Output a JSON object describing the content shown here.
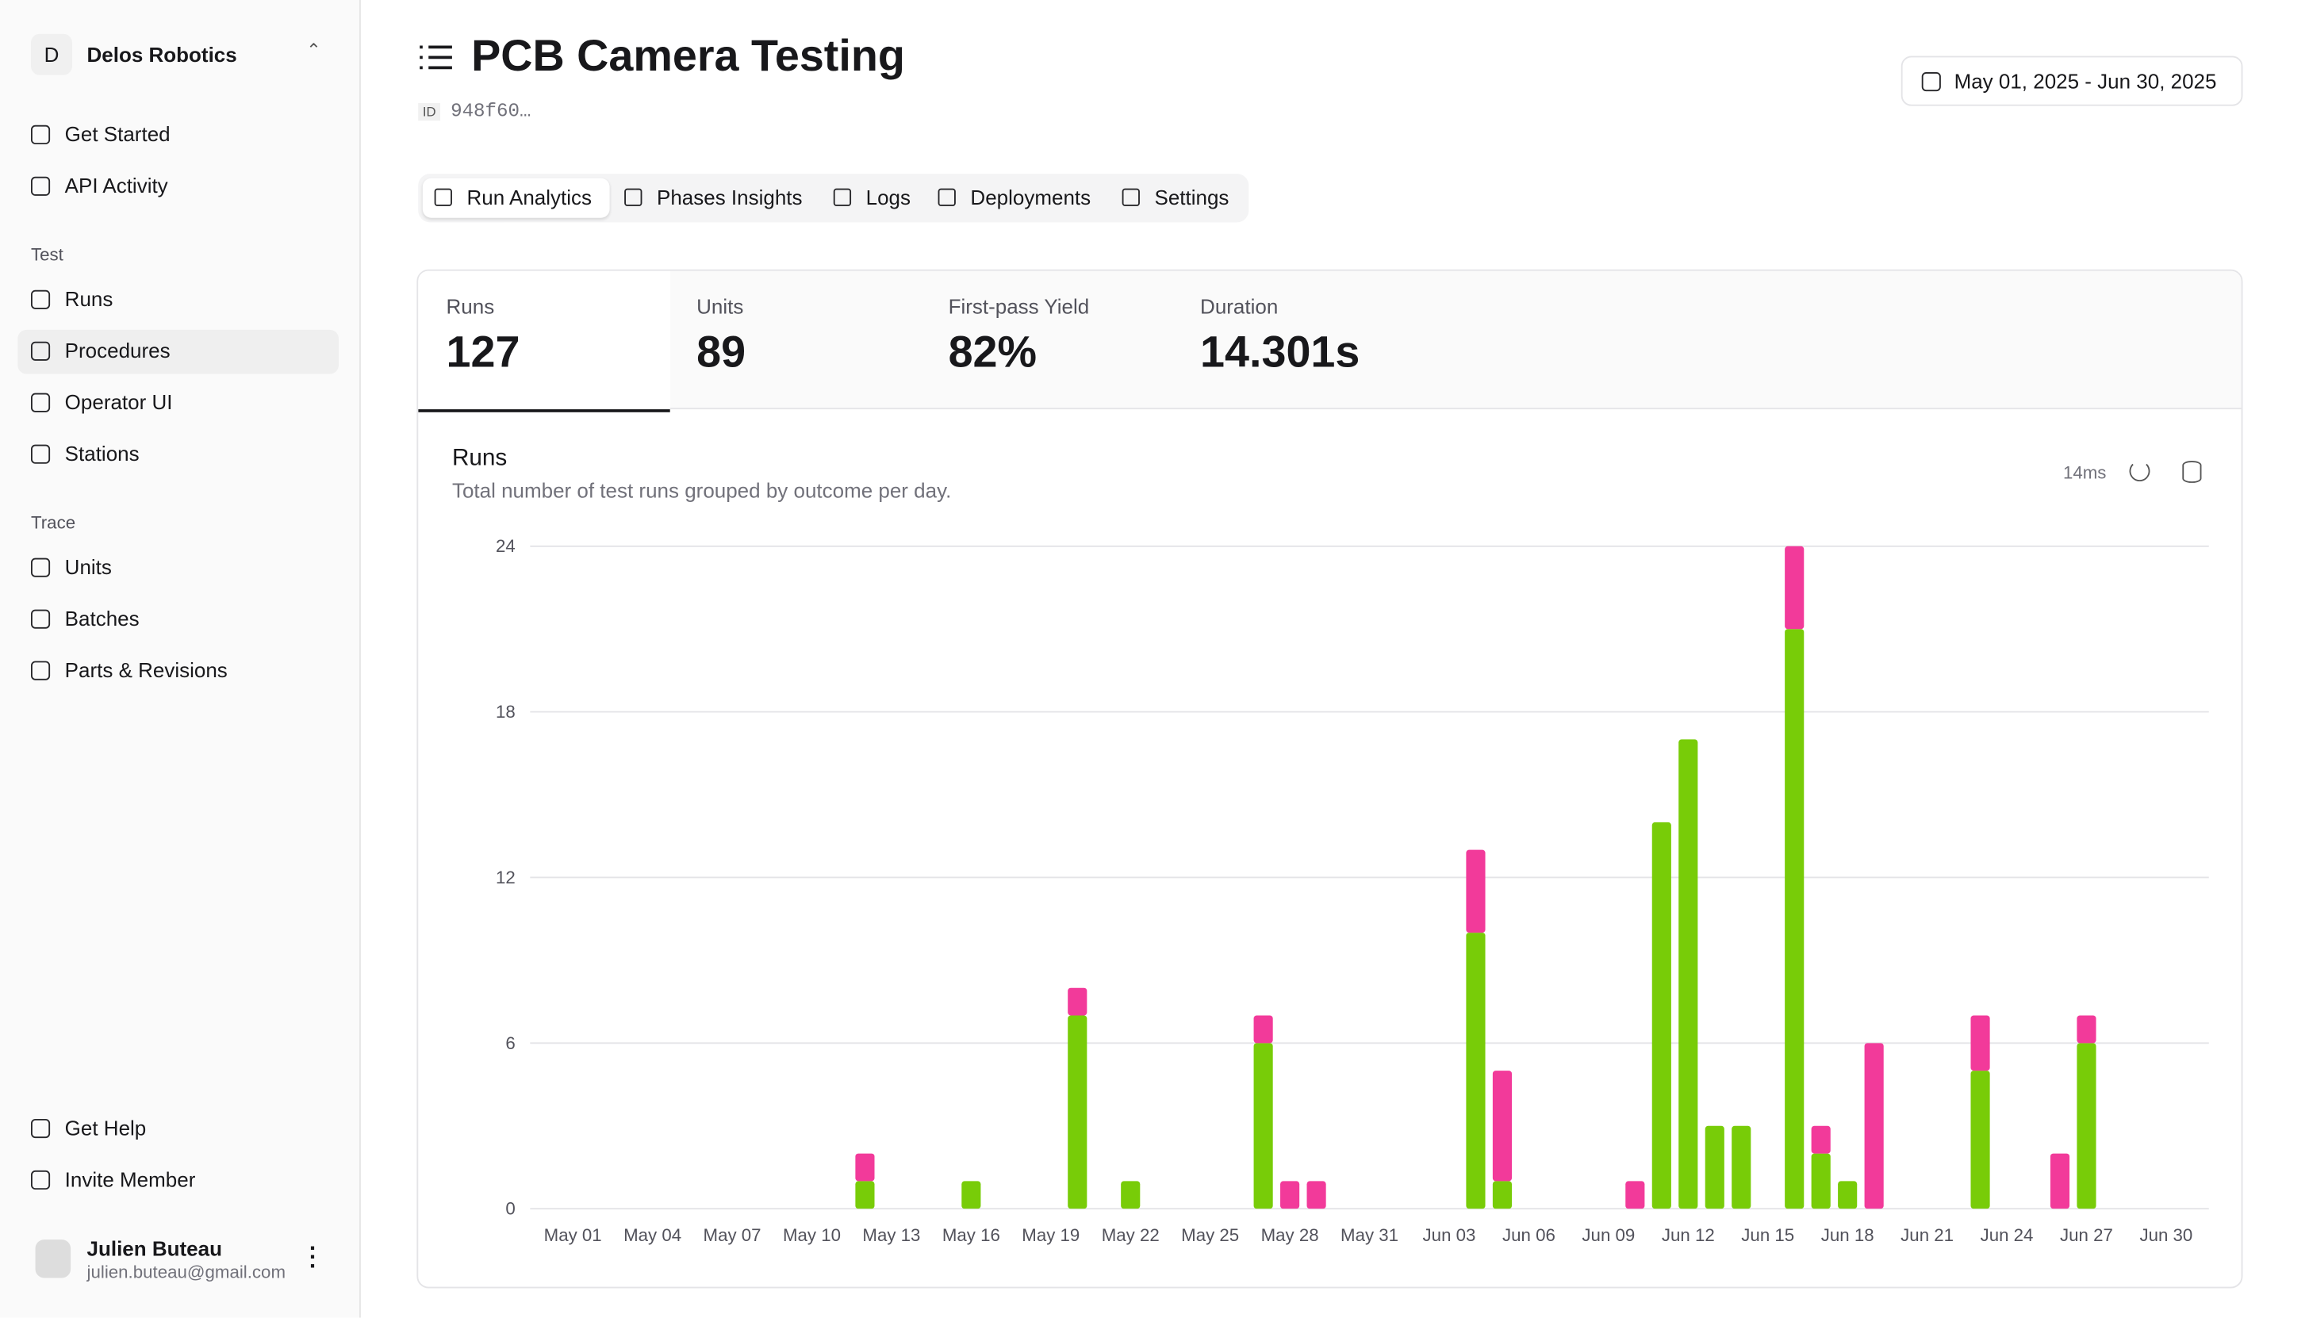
{
  "sidebar": {
    "org_initial": "D",
    "org_name": "Delos Robotics",
    "nav_top": [
      "Get Started",
      "API Activity"
    ],
    "sections": [
      {
        "title": "Test",
        "items": [
          "Runs",
          "Procedures",
          "Operator UI",
          "Stations"
        ]
      },
      {
        "title": "Trace",
        "items": [
          "Units",
          "Batches",
          "Parts & Revisions"
        ]
      }
    ],
    "nav_bottom": [
      "Get Help",
      "Invite Member"
    ],
    "user": {
      "name": "Julien Buteau",
      "email": "julien.buteau@gmail.com"
    }
  },
  "header": {
    "title": "PCB Camera Testing",
    "id_label": "ID",
    "id": "948f60…",
    "date_range": "May 01, 2025 - Jun 30, 2025"
  },
  "tabs": [
    "Run Analytics",
    "Phases Insights",
    "Logs",
    "Deployments",
    "Settings"
  ],
  "stats": [
    {
      "label": "Runs",
      "value": "127"
    },
    {
      "label": "Units",
      "value": "89"
    },
    {
      "label": "First-pass Yield",
      "value": "82%"
    },
    {
      "label": "Duration",
      "value": "14.301s"
    }
  ],
  "chart_data": {
    "type": "bar",
    "stacked": true,
    "title": "Runs",
    "subtitle": "Total number of test runs grouped by outcome per day.",
    "timing": "14ms",
    "categories": [
      "May 01",
      null,
      null,
      "May 04",
      null,
      null,
      "May 07",
      null,
      null,
      "May 10",
      null,
      null,
      "May 13",
      null,
      null,
      "May 16",
      null,
      null,
      "May 19",
      null,
      null,
      "May 22",
      null,
      null,
      "May 25",
      null,
      null,
      "May 28",
      null,
      null,
      "May 31",
      null,
      null,
      "Jun 03",
      null,
      null,
      "Jun 06",
      null,
      null,
      "Jun 09",
      null,
      null,
      "Jun 12",
      null,
      null,
      "Jun 15",
      null,
      null,
      "Jun 18",
      null,
      null,
      "Jun 21",
      null,
      null,
      "Jun 24",
      null,
      null,
      "Jun 27",
      null,
      null,
      "Jun 30"
    ],
    "series": [
      {
        "color": "#78cc08",
        "values": [
          0,
          0,
          0,
          0,
          0,
          0,
          0,
          0,
          0,
          0,
          0,
          1,
          0,
          0,
          0,
          1,
          0,
          0,
          0,
          7,
          0,
          1,
          0,
          0,
          0,
          0,
          6,
          0,
          0,
          0,
          0,
          0,
          0,
          0,
          10,
          1,
          0,
          0,
          0,
          0,
          0,
          14,
          17,
          3,
          3,
          0,
          21,
          2,
          1,
          0,
          0,
          0,
          0,
          5,
          0,
          0,
          0,
          6,
          0,
          0,
          0
        ]
      },
      {
        "color": "#f23a9a",
        "values": [
          0,
          0,
          0,
          0,
          0,
          0,
          0,
          0,
          0,
          0,
          0,
          1,
          0,
          0,
          0,
          0,
          0,
          0,
          0,
          1,
          0,
          0,
          0,
          0,
          0,
          0,
          1,
          1,
          1,
          0,
          0,
          0,
          0,
          0,
          3,
          4,
          0,
          0,
          0,
          0,
          1,
          0,
          0,
          0,
          0,
          0,
          3,
          1,
          0,
          6,
          0,
          0,
          0,
          2,
          0,
          0,
          2,
          1,
          0,
          0,
          0
        ]
      }
    ],
    "ylim": [
      0,
      24
    ],
    "yticks": [
      0,
      6,
      12,
      18,
      24
    ],
    "grid": true
  }
}
